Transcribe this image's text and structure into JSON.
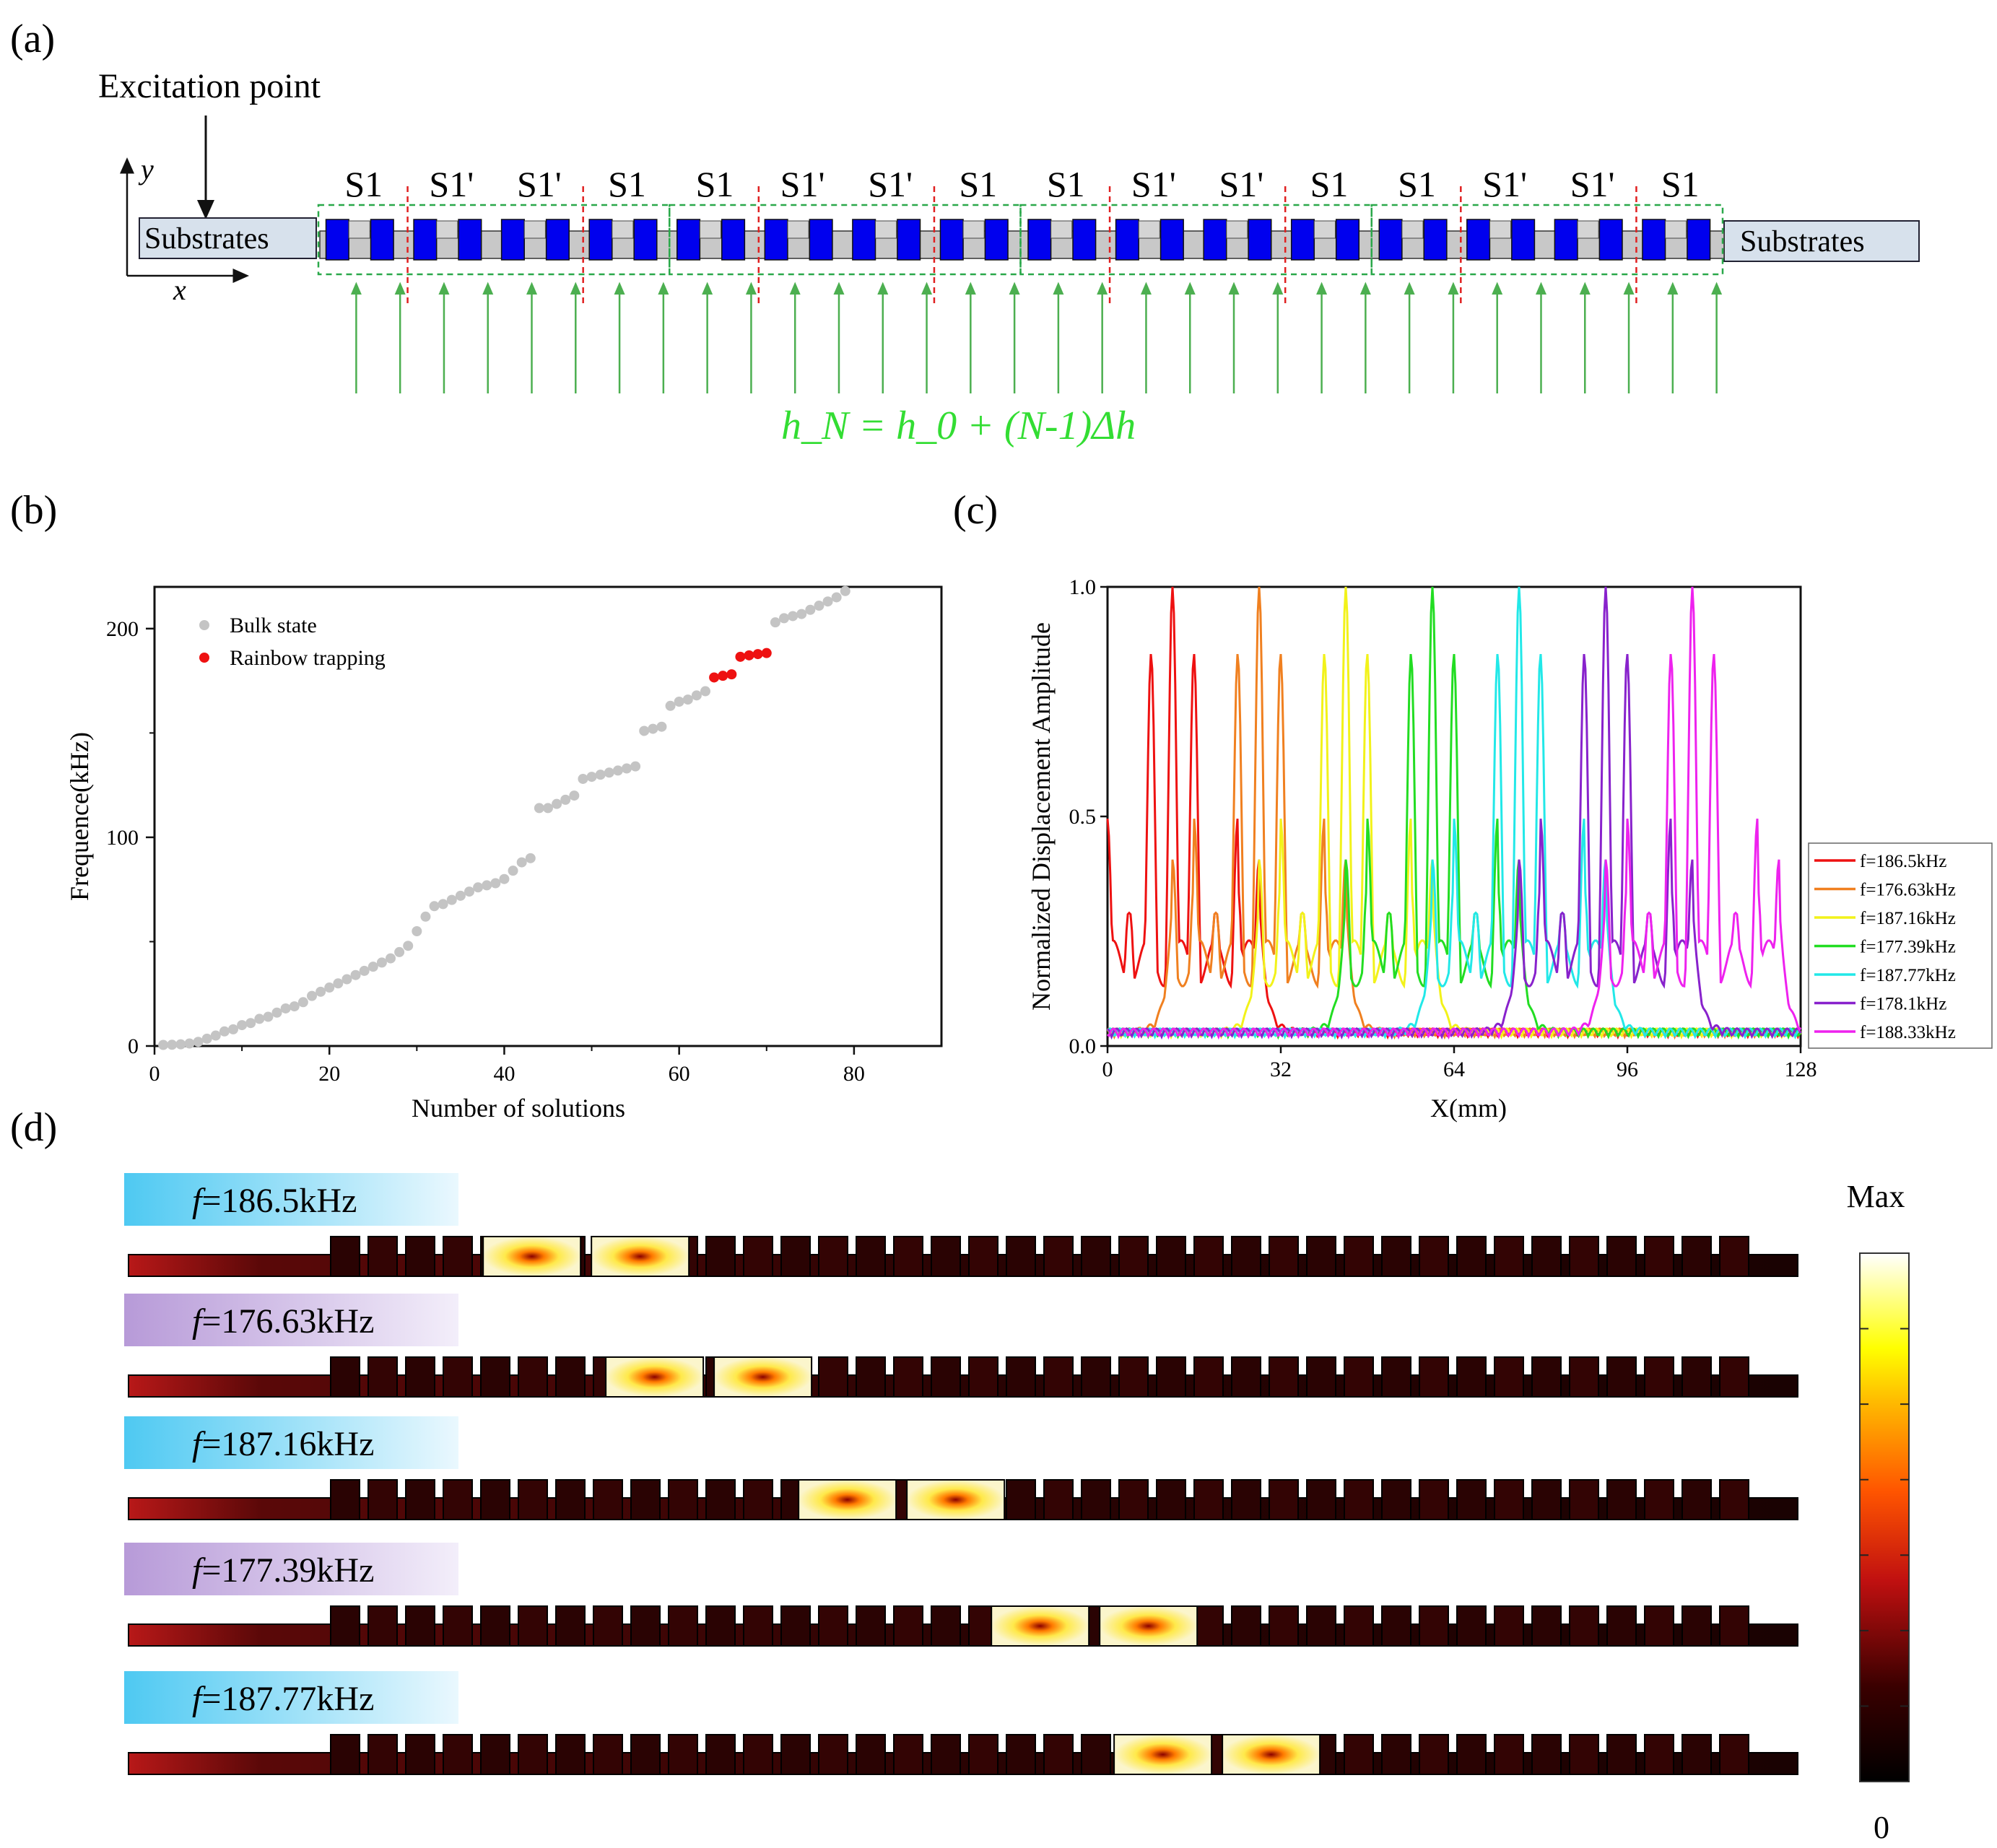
{
  "panels": {
    "a": "(a)",
    "b": "(b)",
    "c": "(c)",
    "d": "(d)"
  },
  "panel_a": {
    "excitation_label": "Excitation point",
    "axis_y": "y",
    "axis_x": "x",
    "substrate_left": "Substrates",
    "substrate_right": "Substrates",
    "segment_labels": [
      "S1",
      "S1'",
      "S1'",
      "S1",
      "S1",
      "S1'",
      "S1'",
      "S1",
      "S1",
      "S1'",
      "S1'",
      "S1",
      "S1",
      "S1'",
      "S1'",
      "S1"
    ],
    "formula": "h_N = h_0 + (N-1)Δh",
    "colors": {
      "block": "#0000ee",
      "beam": "#c8c8c8",
      "substrate": "#d7e1ec",
      "arrow": "#4caf50",
      "dash_red": "#e02020",
      "dash_green": "#2aa84a"
    }
  },
  "chart_data": [
    {
      "id": "b",
      "type": "scatter",
      "xlabel": "Number of solutions",
      "ylabel": "Frequence(kHz)",
      "xlim": [
        0,
        90
      ],
      "ylim": [
        0,
        220
      ],
      "xticks": [
        0,
        20,
        40,
        60,
        80
      ],
      "yticks": [
        0,
        100,
        200
      ],
      "legend": {
        "position": "top-left",
        "entries": [
          "Bulk state",
          "Rainbow trapping"
        ]
      },
      "series": [
        {
          "name": "Bulk state",
          "color": "#c4c4c4",
          "x": [
            1,
            2,
            3,
            4,
            5,
            6,
            7,
            8,
            9,
            10,
            11,
            12,
            13,
            14,
            15,
            16,
            17,
            18,
            19,
            20,
            21,
            22,
            23,
            24,
            25,
            26,
            27,
            28,
            29,
            30,
            31,
            32,
            33,
            34,
            35,
            36,
            37,
            38,
            39,
            40,
            41,
            42,
            43,
            44,
            45,
            46,
            47,
            48,
            49,
            50,
            51,
            52,
            53,
            54,
            55,
            56,
            57,
            58,
            59,
            60,
            61,
            62,
            63,
            71,
            72,
            73,
            74,
            75,
            76,
            77,
            78,
            79
          ],
          "y": [
            0.5,
            0.6,
            0.8,
            1.2,
            2,
            3.5,
            5,
            7,
            8,
            10,
            11,
            13,
            14,
            16,
            18,
            19,
            21,
            24,
            26,
            28,
            30,
            32,
            34,
            36,
            38,
            40,
            42,
            45,
            48,
            55,
            62,
            67,
            68,
            70,
            72,
            74,
            76,
            77,
            78,
            80,
            84,
            88,
            90,
            114,
            114,
            116,
            118,
            120,
            128,
            129,
            130,
            131,
            132,
            133,
            134,
            151,
            152,
            153,
            163,
            165,
            166,
            168,
            170,
            203,
            205,
            206,
            207,
            209,
            211,
            213,
            215,
            218
          ],
          "markers_only": true
        },
        {
          "name": "Rainbow trapping",
          "color": "#ee1111",
          "x": [
            64,
            65,
            66,
            67,
            68,
            69,
            70
          ],
          "y": [
            176.6,
            177.4,
            178.1,
            186.5,
            187.2,
            187.8,
            188.3
          ]
        }
      ]
    },
    {
      "id": "c",
      "type": "line",
      "xlabel": "X(mm)",
      "ylabel": "Normalized Displacement Amplitude",
      "xlim": [
        0,
        128
      ],
      "ylim": [
        0,
        1.0
      ],
      "xticks": [
        0,
        32,
        64,
        96,
        128
      ],
      "yticks": [
        0.0,
        0.5,
        1.0
      ],
      "ytick_labels": [
        "0.0",
        "0.5",
        "1.0"
      ],
      "legend": {
        "position": "right",
        "entries": [
          "f=186.5kHz",
          "f=176.63kHz",
          "f=187.16kHz",
          "f=177.39kHz",
          "f=187.77kHz",
          "f=178.1kHz",
          "f=188.33kHz"
        ]
      },
      "series": [
        {
          "name": "f=186.5kHz",
          "color": "#ee1111",
          "center_mm": 12
        },
        {
          "name": "f=176.63kHz",
          "color": "#f08020",
          "center_mm": 28
        },
        {
          "name": "f=187.16kHz",
          "color": "#f2f21a",
          "center_mm": 44
        },
        {
          "name": "f=177.39kHz",
          "color": "#22dd22",
          "center_mm": 60
        },
        {
          "name": "f=187.77kHz",
          "color": "#22e8e8",
          "center_mm": 76
        },
        {
          "name": "f=178.1kHz",
          "color": "#8822cc",
          "center_mm": 92
        },
        {
          "name": "f=188.33kHz",
          "color": "#ee22ee",
          "center_mm": 108
        }
      ]
    }
  ],
  "panel_d": {
    "rows": [
      {
        "label": "f=186.5kHz",
        "label_prefix": "f",
        "label_rest": "=186.5kHz",
        "bg": "cyan",
        "hot_fraction": 0.26
      },
      {
        "label": "f=176.63kHz",
        "label_prefix": "f",
        "label_rest": "=176.63kHz",
        "bg": "violet",
        "hot_fraction": 0.33
      },
      {
        "label": "f=187.16kHz",
        "label_prefix": "f",
        "label_rest": "=187.16kHz",
        "bg": "cyan",
        "hot_fraction": 0.44
      },
      {
        "label": "f=177.39kHz",
        "label_prefix": "f",
        "label_rest": "=177.39kHz",
        "bg": "violet",
        "hot_fraction": 0.55
      },
      {
        "label": "f=187.77kHz",
        "label_prefix": "f",
        "label_rest": "=187.77kHz",
        "bg": "cyan",
        "hot_fraction": 0.62
      }
    ],
    "colorbar": {
      "max_label": "Max",
      "min_label": "0"
    }
  }
}
